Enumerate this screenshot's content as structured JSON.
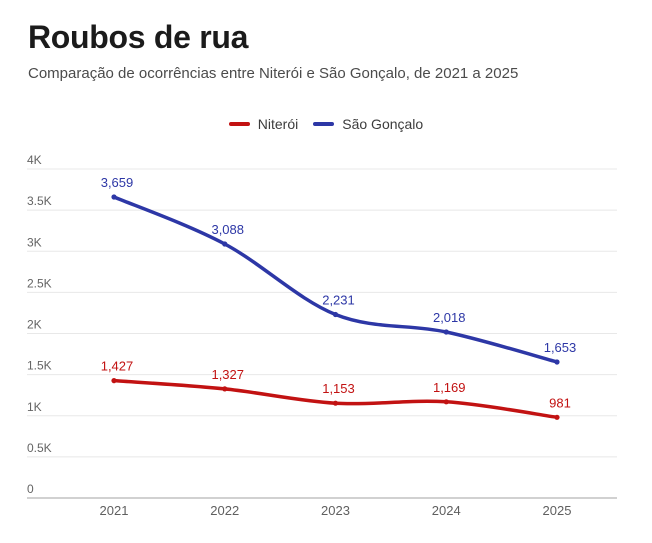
{
  "header": {
    "title": "Roubos de rua",
    "subtitle": "Comparação de ocorrências entre Niterói e São Gonçalo, de 2021 a 2025"
  },
  "legend": {
    "items": [
      {
        "label": "Niterói",
        "color": "#c21212"
      },
      {
        "label": "São Gonçalo",
        "color": "#2d37a6"
      }
    ]
  },
  "chart_data": {
    "type": "line",
    "title": "Roubos de rua",
    "subtitle": "Comparação de ocorrências entre Niterói e São Gonçalo, de 2021 a 2025",
    "x": [
      "2021",
      "2022",
      "2023",
      "2024",
      "2025"
    ],
    "series": [
      {
        "id": "niteroi",
        "name": "Niterói",
        "color": "#c21212",
        "values": [
          1427,
          1327,
          1153,
          1169,
          981
        ],
        "labels": [
          "1,427",
          "1,327",
          "1,153",
          "1,169",
          "981"
        ]
      },
      {
        "id": "sao-goncalo",
        "name": "São Gonçalo",
        "color": "#2d37a6",
        "values": [
          3659,
          3088,
          2231,
          2018,
          1653
        ],
        "labels": [
          "3,659",
          "3,088",
          "2,231",
          "2,018",
          "1,653"
        ]
      }
    ],
    "ylim": [
      0,
      4000
    ],
    "yticks": [
      {
        "value": 0,
        "label": "0"
      },
      {
        "value": 500,
        "label": "0.5K"
      },
      {
        "value": 1000,
        "label": "1K"
      },
      {
        "value": 1500,
        "label": "1.5K"
      },
      {
        "value": 2000,
        "label": "2K"
      },
      {
        "value": 2500,
        "label": "2.5K"
      },
      {
        "value": 3000,
        "label": "3K"
      },
      {
        "value": 3500,
        "label": "3.5K"
      },
      {
        "value": 4000,
        "label": "4K"
      }
    ],
    "grid": "horizontal",
    "legend_position": "top",
    "line_style": "smooth",
    "grid_color": "#e8e8e8",
    "baseline_color": "#a3a3a3",
    "axis_text_color": "#5f5f5f"
  }
}
